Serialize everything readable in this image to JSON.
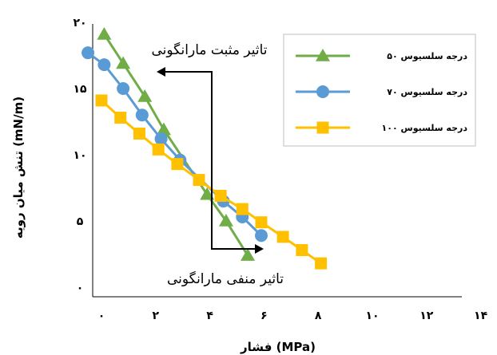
{
  "chart_data": {
    "type": "line",
    "title": "",
    "xlabel": "فشار (MPa)",
    "ylabel": "تنش میان رویه (mN/m)",
    "xlim": [
      0,
      14
    ],
    "ylim": [
      0,
      20
    ],
    "x_ticks": [
      {
        "value": 0,
        "label": "۰"
      },
      {
        "value": 2,
        "label": "۲"
      },
      {
        "value": 4,
        "label": "۴"
      },
      {
        "value": 6,
        "label": "۶"
      },
      {
        "value": 8,
        "label": "۸"
      },
      {
        "value": 10,
        "label": "۱۰"
      },
      {
        "value": 12,
        "label": "۱۲"
      },
      {
        "value": 14,
        "label": "۱۴"
      }
    ],
    "y_ticks": [
      {
        "value": 0,
        "label": "۰"
      },
      {
        "value": 5,
        "label": "۵"
      },
      {
        "value": 10,
        "label": "۱۰"
      },
      {
        "value": 15,
        "label": "۱۵"
      },
      {
        "value": 20,
        "label": "۲۰"
      }
    ],
    "series": [
      {
        "name": "۵۰ درجه سلسیوس",
        "color": "#70AD47",
        "marker": "triangle",
        "x": [
          0.1,
          0.8,
          1.6,
          2.3,
          3.9,
          4.6,
          5.4
        ],
        "y": [
          19.1,
          16.9,
          14.4,
          11.9,
          7.0,
          5.0,
          2.4
        ]
      },
      {
        "name": "۷۰ درجه سلسیوس",
        "color": "#5B9BD5",
        "marker": "circle",
        "x": [
          -0.5,
          0.1,
          0.8,
          1.5,
          2.2,
          2.9,
          4.5,
          5.2,
          5.9
        ],
        "y": [
          17.7,
          16.8,
          15.0,
          13.0,
          11.2,
          9.6,
          6.5,
          5.3,
          3.9
        ]
      },
      {
        "name": "۱۰۰ درجه سلسیوس",
        "color": "#FFC000",
        "marker": "square",
        "x": [
          0.0,
          0.7,
          1.4,
          2.1,
          2.8,
          3.6,
          4.4,
          5.2,
          5.9,
          6.7,
          7.4,
          8.1
        ],
        "y": [
          14.1,
          12.8,
          11.6,
          10.4,
          9.3,
          8.1,
          6.9,
          5.9,
          4.9,
          3.8,
          2.8,
          1.8
        ]
      }
    ],
    "legend": {
      "position": "top-right",
      "border": true
    },
    "annotations": {
      "positive": "تاثیر مثبت مارانگونی",
      "negative": "تاثیر منفی مارانگونی"
    },
    "grid": false
  }
}
